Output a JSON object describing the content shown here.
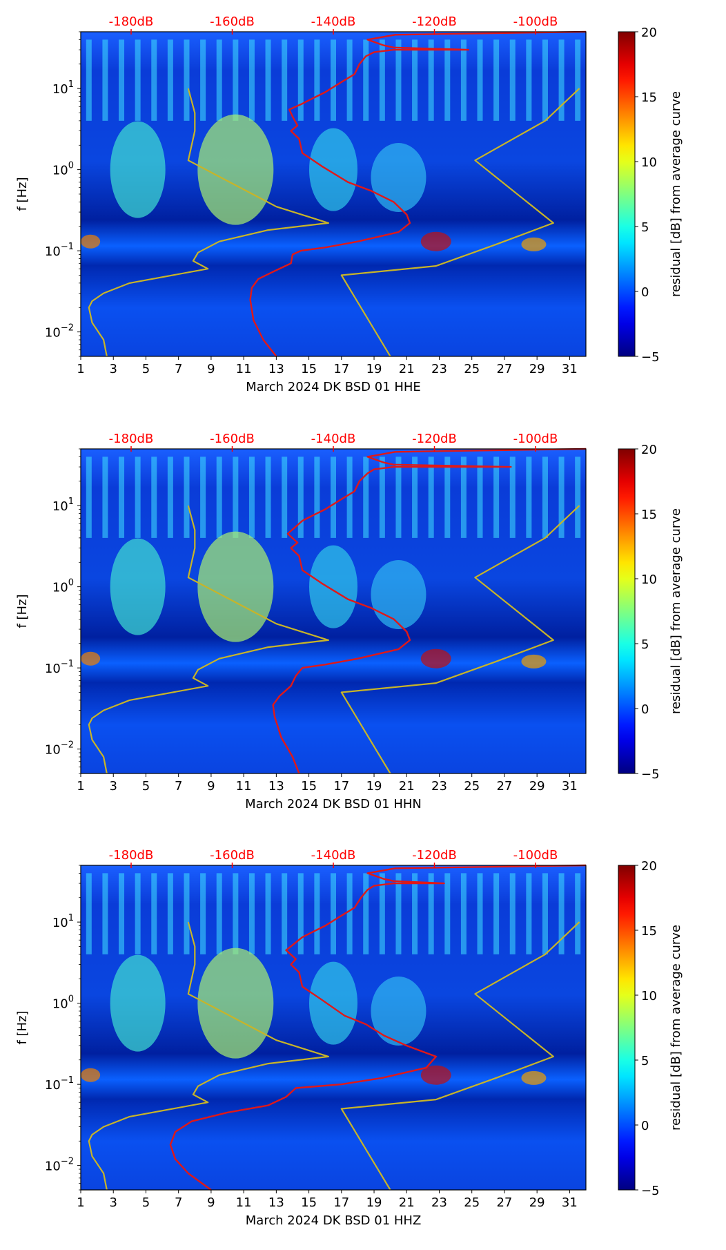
{
  "figure": {
    "colorbar_label": "residual [dB] from average curve",
    "ylabel": "f [Hz]",
    "colors": {
      "psd_curve": "#e01818",
      "noise_model": "#c8b428",
      "top_labels": "#ff0000"
    }
  },
  "chart_data": [
    {
      "type": "heatmap",
      "title": "",
      "xlabel": "March 2024 DK BSD 01 HHE",
      "ylabel": "f [Hz]",
      "x_ticks": [
        "1",
        "3",
        "5",
        "7",
        "9",
        "11",
        "13",
        "15",
        "17",
        "19",
        "21",
        "23",
        "25",
        "27",
        "29",
        "31"
      ],
      "x_range": [
        1,
        32
      ],
      "y_scale": "log",
      "y_range": [
        0.005,
        50
      ],
      "y_ticks": [
        {
          "value": 0.01,
          "base": "10",
          "exp": "−2"
        },
        {
          "value": 0.1,
          "base": "10",
          "exp": "−1"
        },
        {
          "value": 1,
          "base": "10",
          "exp": "0"
        },
        {
          "value": 10,
          "base": "10",
          "exp": "1"
        }
      ],
      "top_ticks": [
        "-180dB",
        "-160dB",
        "-140dB",
        "-120dB",
        "-100dB"
      ],
      "colorbar": {
        "label": "residual [dB] from average curve",
        "range": [
          -5,
          20
        ],
        "ticks": [
          "−5",
          "0",
          "5",
          "10",
          "15",
          "20"
        ]
      },
      "series": [
        {
          "name": "average PSD curve (top dB axis)",
          "x_day": [
            13.0,
            12.2,
            11.6,
            11.4,
            11.5,
            11.9,
            12.8,
            13.9,
            14.0,
            14.5,
            16.0,
            18.0,
            20.5,
            21.2,
            21.0,
            20.2,
            18.8,
            17.4,
            15.8,
            14.6,
            14.4,
            13.9,
            14.3,
            14.0,
            13.8,
            14.6,
            15.2,
            16.0,
            17.0,
            17.8,
            18.1,
            18.5,
            19.0,
            20.2,
            21.5,
            24.8,
            20.2,
            19.6,
            18.6,
            20.3,
            32.0
          ],
          "y_hz": [
            0.005,
            0.008,
            0.014,
            0.025,
            0.035,
            0.045,
            0.055,
            0.07,
            0.09,
            0.1,
            0.11,
            0.13,
            0.17,
            0.22,
            0.28,
            0.4,
            0.55,
            0.7,
            1.1,
            1.6,
            2.4,
            3.0,
            3.5,
            4.5,
            5.5,
            6.5,
            7.5,
            9,
            12,
            15,
            20,
            25,
            28,
            30,
            30,
            30,
            32,
            34,
            40,
            46,
            50
          ]
        },
        {
          "name": "noise model",
          "x_day": [
            2.6,
            2.4,
            1.7,
            1.5,
            1.7,
            2.4,
            4.0,
            8.8,
            7.9,
            8.2,
            9.5,
            12.5,
            16.2,
            13.0,
            7.6,
            8.0,
            8.0,
            7.6
          ],
          "y_hz": [
            0.005,
            0.008,
            0.013,
            0.02,
            0.024,
            0.03,
            0.04,
            0.06,
            0.075,
            0.095,
            0.13,
            0.18,
            0.22,
            0.35,
            1.3,
            3.0,
            5.0,
            10.0
          ]
        },
        {
          "name": "noise model",
          "x_day": [
            20.0,
            17.0,
            22.8,
            26.5,
            30.0,
            25.2,
            29.5,
            31.6
          ],
          "y_hz": [
            0.005,
            0.05,
            0.065,
            0.12,
            0.22,
            1.3,
            4.0,
            10.0
          ]
        }
      ]
    },
    {
      "type": "heatmap",
      "title": "",
      "xlabel": "March 2024 DK BSD 01 HHN",
      "ylabel": "f [Hz]",
      "x_ticks": [
        "1",
        "3",
        "5",
        "7",
        "9",
        "11",
        "13",
        "15",
        "17",
        "19",
        "21",
        "23",
        "25",
        "27",
        "29",
        "31"
      ],
      "x_range": [
        1,
        32
      ],
      "y_scale": "log",
      "y_range": [
        0.005,
        50
      ],
      "y_ticks": [
        {
          "value": 0.01,
          "base": "10",
          "exp": "−2"
        },
        {
          "value": 0.1,
          "base": "10",
          "exp": "−1"
        },
        {
          "value": 1,
          "base": "10",
          "exp": "0"
        },
        {
          "value": 10,
          "base": "10",
          "exp": "1"
        }
      ],
      "top_ticks": [
        "-180dB",
        "-160dB",
        "-140dB",
        "-120dB",
        "-100dB"
      ],
      "colorbar": {
        "label": "residual [dB] from average curve",
        "range": [
          -5,
          20
        ],
        "ticks": [
          "−5",
          "0",
          "5",
          "10",
          "15",
          "20"
        ]
      },
      "series": [
        {
          "name": "average PSD curve (top dB axis)",
          "x_day": [
            14.4,
            14.0,
            13.3,
            12.9,
            12.8,
            13.2,
            13.9,
            14.2,
            14.6,
            16.0,
            18.0,
            20.5,
            21.2,
            21.0,
            20.2,
            18.8,
            17.4,
            15.8,
            14.6,
            14.4,
            13.9,
            14.3,
            13.7,
            14.6,
            15.2,
            16.0,
            17.0,
            17.8,
            18.1,
            18.6,
            19.0,
            20.2,
            21.5,
            27.4,
            20.2,
            19.6,
            18.6,
            20.3,
            32.0
          ],
          "y_hz": [
            0.005,
            0.008,
            0.014,
            0.025,
            0.035,
            0.045,
            0.06,
            0.08,
            0.1,
            0.11,
            0.13,
            0.17,
            0.22,
            0.28,
            0.4,
            0.55,
            0.7,
            1.1,
            1.6,
            2.4,
            3.0,
            3.5,
            4.5,
            6.5,
            7.5,
            9,
            12,
            15,
            20,
            25,
            28,
            30,
            30,
            30,
            32,
            34,
            40,
            46,
            50
          ]
        },
        {
          "name": "noise model",
          "x_day": [
            2.6,
            2.4,
            1.7,
            1.5,
            1.7,
            2.4,
            4.0,
            8.8,
            7.9,
            8.2,
            9.5,
            12.5,
            16.2,
            13.0,
            7.6,
            8.0,
            8.0,
            7.6
          ],
          "y_hz": [
            0.005,
            0.008,
            0.013,
            0.02,
            0.024,
            0.03,
            0.04,
            0.06,
            0.075,
            0.095,
            0.13,
            0.18,
            0.22,
            0.35,
            1.3,
            3.0,
            5.0,
            10.0
          ]
        },
        {
          "name": "noise model",
          "x_day": [
            20.0,
            17.0,
            22.8,
            26.5,
            30.0,
            25.2,
            29.5,
            31.6
          ],
          "y_hz": [
            0.005,
            0.05,
            0.065,
            0.12,
            0.22,
            1.3,
            4.0,
            10.0
          ]
        }
      ]
    },
    {
      "type": "heatmap",
      "title": "",
      "xlabel": "March 2024 DK BSD 01 HHZ",
      "ylabel": "f [Hz]",
      "x_ticks": [
        "1",
        "3",
        "5",
        "7",
        "9",
        "11",
        "13",
        "15",
        "17",
        "19",
        "21",
        "23",
        "25",
        "27",
        "29",
        "31"
      ],
      "x_range": [
        1,
        32
      ],
      "y_scale": "log",
      "y_range": [
        0.005,
        50
      ],
      "y_ticks": [
        {
          "value": 0.01,
          "base": "10",
          "exp": "−2"
        },
        {
          "value": 0.1,
          "base": "10",
          "exp": "−1"
        },
        {
          "value": 1,
          "base": "10",
          "exp": "0"
        },
        {
          "value": 10,
          "base": "10",
          "exp": "1"
        }
      ],
      "top_ticks": [
        "-180dB",
        "-160dB",
        "-140dB",
        "-120dB",
        "-100dB"
      ],
      "colorbar": {
        "label": "residual [dB] from average curve",
        "range": [
          -5,
          20
        ],
        "ticks": [
          "−5",
          "0",
          "5",
          "10",
          "15",
          "20"
        ]
      },
      "series": [
        {
          "name": "average PSD curve (top dB axis)",
          "x_day": [
            9.0,
            7.6,
            6.8,
            6.5,
            6.8,
            7.8,
            10.0,
            12.5,
            13.6,
            14.2,
            17.0,
            19.5,
            22.2,
            22.8,
            21.0,
            19.6,
            18.5,
            17.2,
            15.8,
            14.6,
            14.4,
            13.9,
            14.2,
            13.6,
            14.6,
            15.2,
            16.0,
            17.0,
            17.8,
            18.2,
            18.6,
            19.0,
            20.2,
            21.5,
            23.3,
            20.2,
            19.6,
            18.6,
            20.3,
            32.0
          ],
          "y_hz": [
            0.005,
            0.008,
            0.012,
            0.018,
            0.026,
            0.035,
            0.045,
            0.055,
            0.07,
            0.09,
            0.1,
            0.12,
            0.16,
            0.22,
            0.3,
            0.4,
            0.55,
            0.7,
            1.1,
            1.6,
            2.4,
            3.0,
            3.5,
            4.5,
            6.5,
            7.5,
            9,
            12,
            15,
            20,
            25,
            28,
            30,
            30,
            30,
            32,
            34,
            40,
            46,
            50
          ]
        },
        {
          "name": "noise model",
          "x_day": [
            2.6,
            2.4,
            1.7,
            1.5,
            1.7,
            2.4,
            4.0,
            8.8,
            7.9,
            8.2,
            9.5,
            12.5,
            16.2,
            13.0,
            7.6,
            8.0,
            8.0,
            7.6
          ],
          "y_hz": [
            0.005,
            0.008,
            0.013,
            0.02,
            0.024,
            0.03,
            0.04,
            0.06,
            0.075,
            0.095,
            0.13,
            0.18,
            0.22,
            0.35,
            1.3,
            3.0,
            5.0,
            10.0
          ]
        },
        {
          "name": "noise model",
          "x_day": [
            20.0,
            17.0,
            22.8,
            26.5,
            30.0,
            25.2,
            29.5,
            31.6
          ],
          "y_hz": [
            0.005,
            0.05,
            0.065,
            0.12,
            0.22,
            1.3,
            4.0,
            10.0
          ]
        }
      ]
    }
  ]
}
